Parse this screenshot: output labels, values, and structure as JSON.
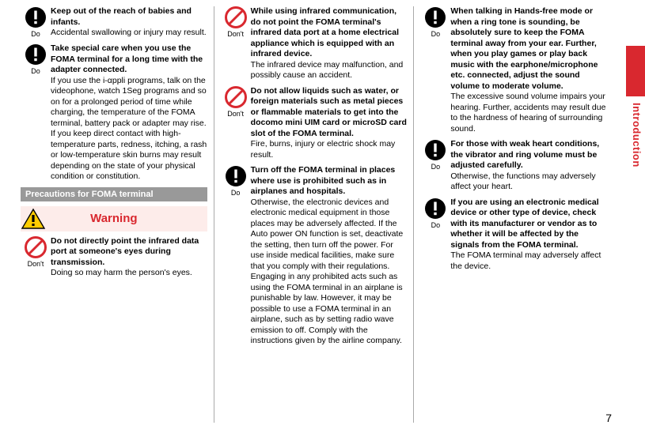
{
  "page": {
    "number": "7",
    "sideLabel": "Introduction"
  },
  "palette": {
    "red": "#d9282f",
    "black": "#000000",
    "grayBar": "#999999",
    "warningBg": "#fdecea"
  },
  "icons": {
    "do": {
      "label": "Do",
      "kind": "exclaim"
    },
    "dont": {
      "label": "Don't",
      "kind": "prohibit"
    }
  },
  "col1": {
    "items": [
      {
        "icon": "do",
        "bold": "Keep out of the reach of babies and infants.",
        "plain": "Accidental swallowing or injury may result."
      },
      {
        "icon": "do",
        "bold": "Take special care when you use the FOMA terminal for a long time with the adapter connected.",
        "plain": "If you use the i-αppli programs, talk on the videophone, watch 1Seg programs and so on for a prolonged period of time while charging, the temperature of the FOMA terminal, battery pack or adapter may rise. If you keep direct contact with high-temperature parts, redness, itching, a rash or low-temperature skin burns may result depending on the state of your physical condition or constitution."
      }
    ],
    "sectionBar": "Precautions for FOMA terminal",
    "warning": {
      "label": "Warning"
    },
    "afterWarning": [
      {
        "icon": "dont",
        "bold": "Do not directly point the infrared data port at someone's eyes during transmission.",
        "plain": "Doing so may harm the person's eyes."
      }
    ]
  },
  "col2": {
    "items": [
      {
        "icon": "dont",
        "bold": "While using infrared communication, do not point the FOMA terminal's infrared data port at a home electrical appliance which is equipped with an infrared device.",
        "plain": "The infrared device may malfunction, and possibly cause an accident."
      },
      {
        "icon": "dont",
        "bold": "Do not allow liquids such as water, or foreign materials such as metal pieces or flammable materials to get into the docomo mini UIM card or microSD card slot of the FOMA terminal.",
        "plain": "Fire, burns, injury or electric shock may result."
      },
      {
        "icon": "do",
        "bold": "Turn off the FOMA terminal in places where use is prohibited such as in airplanes and hospitals.",
        "plain": "Otherwise, the electronic devices and electronic medical equipment in those places may be adversely affected. If the Auto power ON function is set, deactivate the setting, then turn off the power. For use inside medical facilities, make sure that you comply with their regulations.\nEngaging in any prohibited acts such as using the FOMA terminal in an airplane is punishable by law. However, it may be possible to use a FOMA terminal in an airplane, such as by setting radio wave emission to off. Comply with the instructions given by the airline company."
      }
    ]
  },
  "col3": {
    "items": [
      {
        "icon": "do",
        "bold": "When talking in Hands-free mode or when a ring tone is sounding, be absolutely sure to keep the FOMA terminal away from your ear.\nFurther, when you play games or play back music with the earphone/microphone etc. connected, adjust the sound volume to moderate volume.",
        "plain": "The excessive sound volume impairs your hearing.\nFurther, accidents may result due to the hardness of hearing of surrounding sound."
      },
      {
        "icon": "do",
        "bold": "For those with weak heart conditions, the vibrator and ring volume must be adjusted carefully.",
        "plain": "Otherwise, the functions may adversely affect your heart."
      },
      {
        "icon": "do",
        "bold": "If you are using an electronic medical device or other type of device, check with its manufacturer or vendor as to whether it will be affected by the signals from the FOMA terminal.",
        "plain": "The FOMA terminal may adversely affect the device."
      }
    ]
  }
}
